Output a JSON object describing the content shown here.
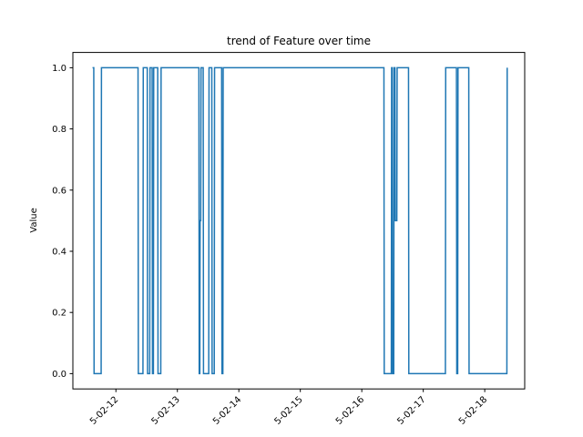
{
  "chart_data": {
    "type": "line",
    "title": "trend of Feature over time",
    "xlabel": "",
    "ylabel": "Value",
    "ylim": [
      -0.05,
      1.05
    ],
    "xlim": [
      11.3,
      18.65
    ],
    "x_ticks": [
      {
        "value": 12,
        "label": "5-02-12"
      },
      {
        "value": 13,
        "label": "5-02-13"
      },
      {
        "value": 14,
        "label": "5-02-14"
      },
      {
        "value": 15,
        "label": "5-02-15"
      },
      {
        "value": 16,
        "label": "5-02-16"
      },
      {
        "value": 17,
        "label": "5-02-17"
      },
      {
        "value": 18,
        "label": "5-02-18"
      }
    ],
    "y_ticks": [
      {
        "value": 0.0,
        "label": "0.0"
      },
      {
        "value": 0.2,
        "label": "0.2"
      },
      {
        "value": 0.4,
        "label": "0.4"
      },
      {
        "value": 0.6,
        "label": "0.6"
      },
      {
        "value": 0.8,
        "label": "0.8"
      },
      {
        "value": 1.0,
        "label": "1.0"
      }
    ],
    "grid": false,
    "colors": {
      "line": "#1f77b4",
      "axes": "#000000"
    },
    "series": [
      {
        "x": [
          11.62,
          11.64,
          11.645,
          11.76,
          11.765,
          12.36,
          12.365,
          12.44,
          12.445,
          12.51,
          12.515,
          12.55,
          12.555,
          12.59,
          12.595,
          12.61,
          12.615,
          12.68,
          12.685,
          12.73,
          12.735,
          13.35,
          13.355,
          13.365,
          13.37,
          13.38,
          13.385,
          13.42,
          13.425,
          13.51,
          13.515,
          13.56,
          13.565,
          13.6,
          13.605,
          13.72,
          13.725,
          13.74,
          13.745,
          16.36,
          16.365,
          16.48,
          16.485,
          16.495,
          16.5,
          16.52,
          16.525,
          16.54,
          16.545,
          16.57,
          16.575,
          16.76,
          16.765,
          17.36,
          17.365,
          17.54,
          17.545,
          17.56,
          17.565,
          17.74,
          17.745,
          18.36,
          18.365
        ],
        "y": [
          1,
          1,
          0,
          0,
          1,
          1,
          0,
          0,
          1,
          1,
          0,
          0,
          1,
          1,
          0,
          0,
          1,
          1,
          0,
          0,
          1,
          1,
          0,
          0,
          0.5,
          0.5,
          1,
          1,
          0,
          0,
          1,
          1,
          0,
          0,
          1,
          1,
          0,
          0,
          1,
          1,
          0,
          0,
          1,
          1,
          0,
          0,
          1,
          1,
          0.5,
          0.5,
          1,
          1,
          0,
          0,
          1,
          1,
          0,
          0,
          1,
          1,
          0,
          0,
          1
        ]
      }
    ]
  }
}
